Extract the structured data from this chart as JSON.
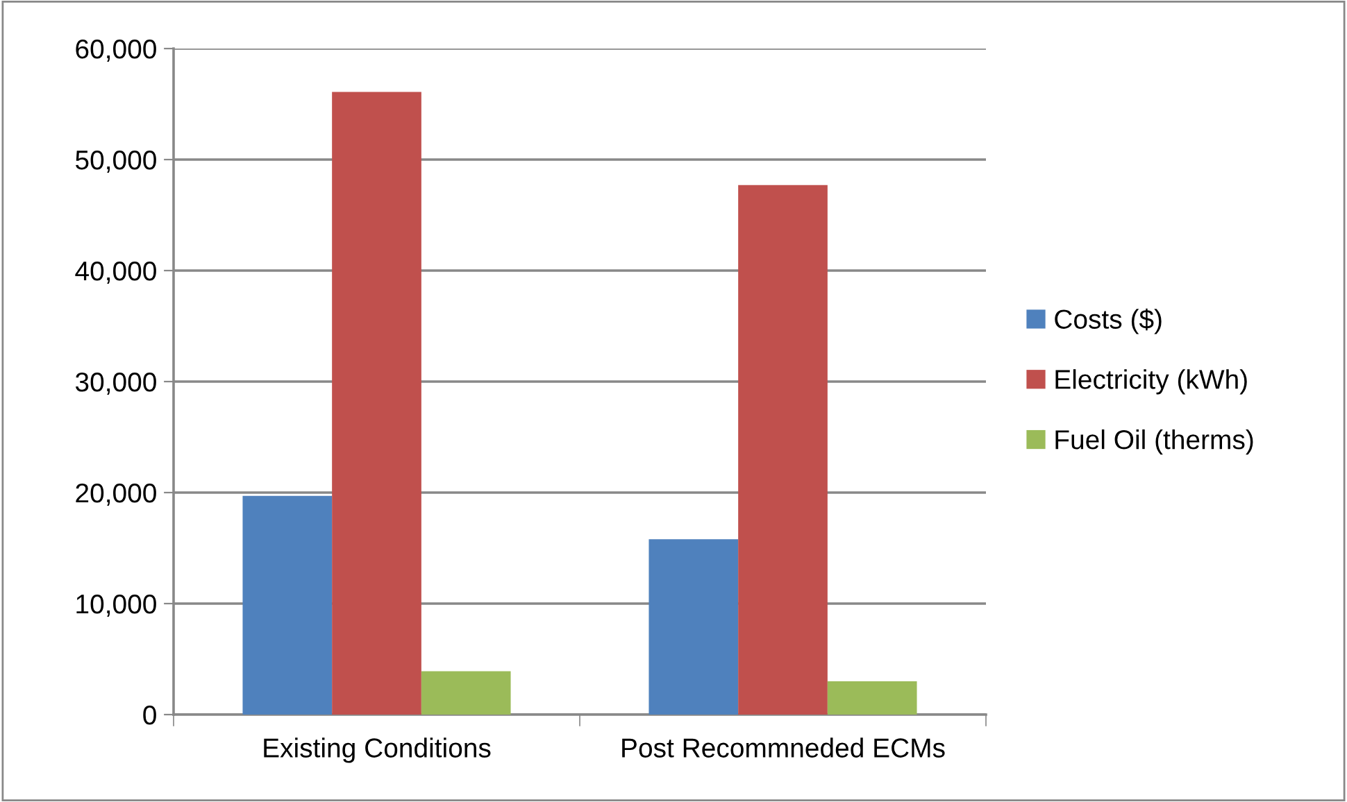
{
  "chart_data": {
    "type": "bar",
    "categories": [
      "Existing Conditions",
      "Post Recommneded ECMs"
    ],
    "series": [
      {
        "name": "Costs ($)",
        "color": "#4f81bd",
        "values": [
          19700,
          15800
        ]
      },
      {
        "name": "Electricity (kWh)",
        "color": "#c0504d",
        "values": [
          56100,
          47700
        ]
      },
      {
        "name": "Fuel Oil (therms)",
        "color": "#9bbb59",
        "values": [
          3900,
          3000
        ]
      }
    ],
    "ylim": [
      0,
      60000
    ],
    "yticks": [
      {
        "value": 0,
        "label": "0"
      },
      {
        "value": 10000,
        "label": "10,000"
      },
      {
        "value": 20000,
        "label": "20,000"
      },
      {
        "value": 30000,
        "label": "30,000"
      },
      {
        "value": 40000,
        "label": "40,000"
      },
      {
        "value": 50000,
        "label": "50,000"
      },
      {
        "value": 60000,
        "label": "60,000"
      }
    ],
    "grid": "y",
    "legend": "right"
  }
}
